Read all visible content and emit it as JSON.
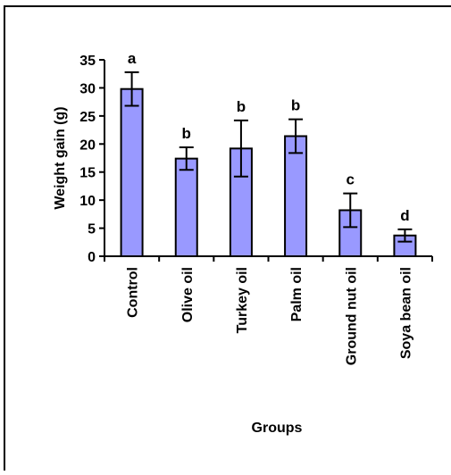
{
  "chart_data": {
    "type": "bar",
    "title": "",
    "xlabel": "Groups",
    "ylabel": "Weight gain (g)",
    "ylim": [
      0,
      35
    ],
    "yticks": [
      0,
      5,
      10,
      15,
      20,
      25,
      30,
      35
    ],
    "categories": [
      "Control",
      "Olive oil",
      "Turkey oil",
      "Palm oil",
      "Ground nut oil",
      "Soya bean oil"
    ],
    "series": [
      {
        "values": [
          29.8,
          17.4,
          19.2,
          21.4,
          8.2,
          3.7
        ],
        "errors": [
          3.0,
          2.0,
          5.0,
          3.0,
          3.0,
          1.1
        ],
        "significance_letters": [
          "a",
          "b",
          "b",
          "b",
          "c",
          "d"
        ]
      }
    ],
    "colors": {
      "bar_fill": "#9999ff",
      "bar_stroke": "#000000",
      "axis": "#000000"
    },
    "grid": false,
    "legend": "none"
  }
}
